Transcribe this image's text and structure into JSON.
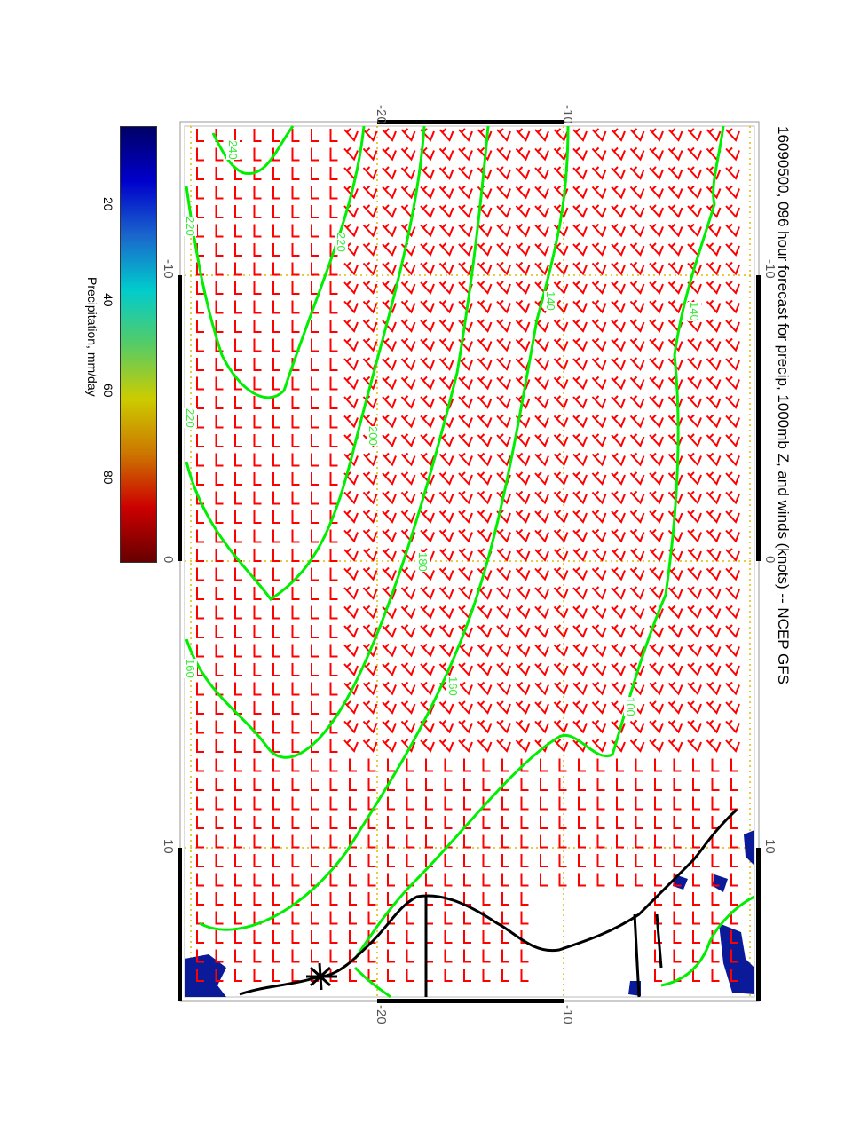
{
  "title": "16090500, 096 hour forecast for precip, 1000mb Z, and winds (knots) -- NCEP GFS",
  "colorbar": {
    "label": "Precipitation, mm/day",
    "ticks": [
      "20",
      "40",
      "60",
      "80"
    ],
    "colors": [
      "#000066",
      "#0000cc",
      "#1a66cc",
      "#00cccc",
      "#55cc66",
      "#cccc00",
      "#cc7700",
      "#cc0000",
      "#660000"
    ]
  },
  "axes": {
    "top_ticks": [
      "-20",
      "-10"
    ],
    "bottom_ticks": [
      "-20",
      "-10"
    ],
    "right_ticks": [
      "-10",
      "0",
      "10"
    ],
    "left_ticks": [
      "-10",
      "0",
      "10"
    ]
  },
  "contour_labels": [
    "240",
    "220",
    "220",
    "220",
    "200",
    "180",
    "160",
    "160",
    "140",
    "140",
    "100"
  ],
  "colors": {
    "contour": "#00ee00",
    "barb": "#ff0000",
    "grid": "#ddbb00",
    "coast": "#000000",
    "precip": "#0a1a99"
  }
}
